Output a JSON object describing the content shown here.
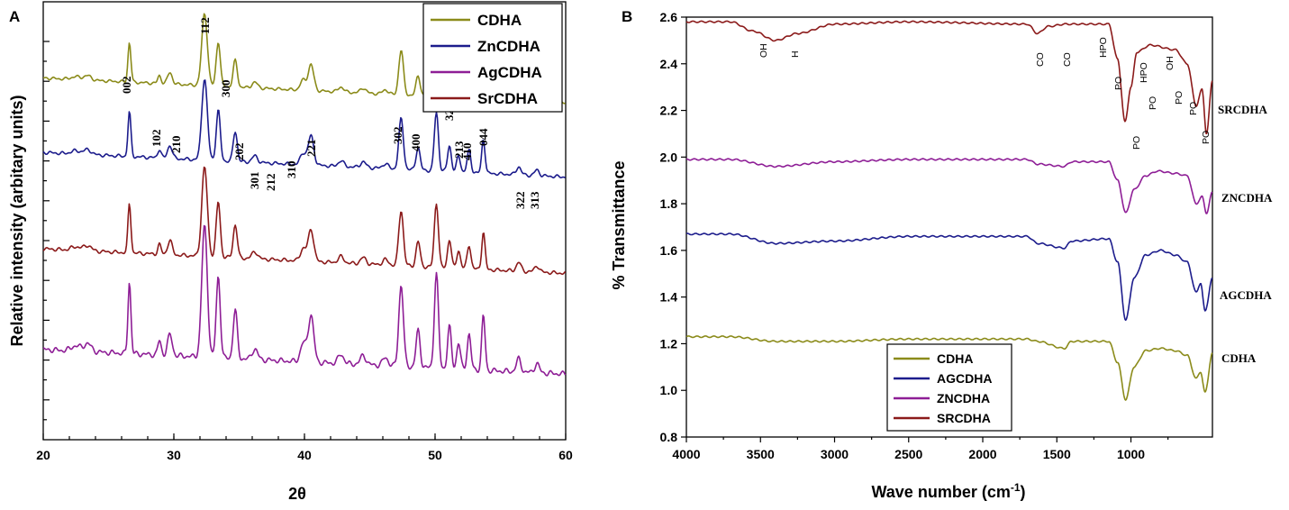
{
  "panel_a": {
    "label": "A",
    "xlabel": "2θ",
    "ylabel": "Relative intensity (arbitary units)",
    "xticks": [
      "20",
      "30",
      "40",
      "50",
      "60"
    ],
    "legend": [
      "CDHA",
      "ZnCDHA",
      "AgCDHA",
      "SrCDHA"
    ],
    "peak_labels": [
      "002",
      "102",
      "210",
      "112",
      "300",
      "202",
      "301",
      "212",
      "310",
      "221",
      "302",
      "400",
      "312",
      "320",
      "213",
      "410",
      "044",
      "322",
      "313"
    ]
  },
  "panel_b": {
    "label": "B",
    "xlabel_main": "Wave number (cm",
    "xlabel_sup": "-1",
    "xlabel_end": ")",
    "ylabel": "% Transmittance",
    "xticks": [
      "4000",
      "3500",
      "3000",
      "2500",
      "2000",
      "1500",
      "1000"
    ],
    "yticks": [
      "0.8",
      "1.0",
      "1.2",
      "1.4",
      "1.6",
      "1.8",
      "2.0",
      "2.2",
      "2.4",
      "2.6"
    ],
    "legend": [
      "CDHA",
      "AGCDHA",
      "ZNCDHA",
      "SRCDHA"
    ],
    "series_labels": [
      "SRCDHA",
      "ZNCDHA",
      "AGCDHA",
      "CDHA"
    ],
    "band_labels": [
      "OH",
      "H",
      "CO",
      "CO",
      "HPO",
      "PO",
      "PO",
      "PO",
      "HPO",
      "OH",
      "PO",
      "PO",
      "PO"
    ]
  },
  "chart_data": [
    {
      "type": "line",
      "title": "A",
      "xlabel": "2θ",
      "ylabel": "Relative intensity (arbitary units)",
      "xlim": [
        20,
        60
      ],
      "legend_position": "top-right",
      "peaks_2theta": [
        26.6,
        28.9,
        29.7,
        32.5,
        33.4,
        34.7,
        36.2,
        37.4,
        39.3,
        40.5,
        47.4,
        48.7,
        50.1,
        51.0,
        51.8,
        52.6,
        53.7,
        56.4,
        57.8
      ],
      "series": [
        {
          "name": "CDHA",
          "color": "#8b8b1a",
          "baseline": 0.77,
          "scale": 0.55
        },
        {
          "name": "ZnCDHA",
          "color": "#1c1c8c",
          "baseline": 0.6,
          "scale": 0.62
        },
        {
          "name": "SrCDHA",
          "color": "#8b1a1a",
          "baseline": 0.38,
          "scale": 0.68
        },
        {
          "name": "AgCDHA",
          "color": "#8e1e96",
          "baseline": 0.15,
          "scale": 1.0
        }
      ]
    },
    {
      "type": "line",
      "title": "B",
      "xlabel": "Wave number (cm-1)",
      "ylabel": "% Transmittance",
      "xlim": [
        4000,
        450
      ],
      "ylim": [
        0.8,
        2.6
      ],
      "legend_position": "bottom-center",
      "series": [
        {
          "name": "SRCDHA",
          "color": "#8b1a1a",
          "baseline": 2.58,
          "points": [
            [
              4000,
              2.58
            ],
            [
              3700,
              2.58
            ],
            [
              3550,
              2.54
            ],
            [
              3400,
              2.5
            ],
            [
              3250,
              2.53
            ],
            [
              3000,
              2.57
            ],
            [
              2500,
              2.58
            ],
            [
              1700,
              2.57
            ],
            [
              1630,
              2.53
            ],
            [
              1560,
              2.56
            ],
            [
              1440,
              2.57
            ],
            [
              1150,
              2.57
            ],
            [
              1090,
              2.42
            ],
            [
              1040,
              2.15
            ],
            [
              1000,
              2.3
            ],
            [
              960,
              2.45
            ],
            [
              870,
              2.48
            ],
            [
              700,
              2.46
            ],
            [
              620,
              2.4
            ],
            [
              560,
              2.22
            ],
            [
              520,
              2.29
            ],
            [
              490,
              2.1
            ],
            [
              450,
              2.33
            ]
          ]
        },
        {
          "name": "ZNCDHA",
          "color": "#8e1e96",
          "baseline": 1.99,
          "points": [
            [
              4000,
              1.99
            ],
            [
              3700,
              1.99
            ],
            [
              3400,
              1.96
            ],
            [
              3000,
              1.98
            ],
            [
              2500,
              1.99
            ],
            [
              1700,
              1.99
            ],
            [
              1630,
              1.97
            ],
            [
              1450,
              1.96
            ],
            [
              1400,
              1.98
            ],
            [
              1150,
              1.98
            ],
            [
              1090,
              1.9
            ],
            [
              1035,
              1.76
            ],
            [
              980,
              1.86
            ],
            [
              900,
              1.92
            ],
            [
              820,
              1.94
            ],
            [
              700,
              1.93
            ],
            [
              620,
              1.92
            ],
            [
              560,
              1.8
            ],
            [
              520,
              1.83
            ],
            [
              490,
              1.76
            ],
            [
              450,
              1.85
            ]
          ]
        },
        {
          "name": "AGCDHA",
          "color": "#1c1c8c",
          "baseline": 1.67,
          "points": [
            [
              4000,
              1.67
            ],
            [
              3700,
              1.67
            ],
            [
              3400,
              1.63
            ],
            [
              3000,
              1.64
            ],
            [
              2500,
              1.66
            ],
            [
              1700,
              1.66
            ],
            [
              1630,
              1.63
            ],
            [
              1450,
              1.61
            ],
            [
              1400,
              1.64
            ],
            [
              1150,
              1.65
            ],
            [
              1090,
              1.55
            ],
            [
              1035,
              1.3
            ],
            [
              980,
              1.48
            ],
            [
              900,
              1.58
            ],
            [
              800,
              1.6
            ],
            [
              700,
              1.58
            ],
            [
              620,
              1.55
            ],
            [
              560,
              1.42
            ],
            [
              530,
              1.46
            ],
            [
              500,
              1.34
            ],
            [
              450,
              1.48
            ]
          ]
        },
        {
          "name": "CDHA",
          "color": "#8b8b1a",
          "baseline": 1.23,
          "points": [
            [
              4000,
              1.23
            ],
            [
              3700,
              1.23
            ],
            [
              3400,
              1.21
            ],
            [
              3000,
              1.21
            ],
            [
              2500,
              1.22
            ],
            [
              1700,
              1.22
            ],
            [
              1630,
              1.21
            ],
            [
              1450,
              1.18
            ],
            [
              1400,
              1.21
            ],
            [
              1150,
              1.21
            ],
            [
              1090,
              1.12
            ],
            [
              1035,
              0.96
            ],
            [
              980,
              1.1
            ],
            [
              900,
              1.17
            ],
            [
              800,
              1.18
            ],
            [
              700,
              1.17
            ],
            [
              620,
              1.15
            ],
            [
              560,
              1.05
            ],
            [
              530,
              1.08
            ],
            [
              500,
              0.99
            ],
            [
              450,
              1.16
            ]
          ]
        }
      ]
    }
  ]
}
